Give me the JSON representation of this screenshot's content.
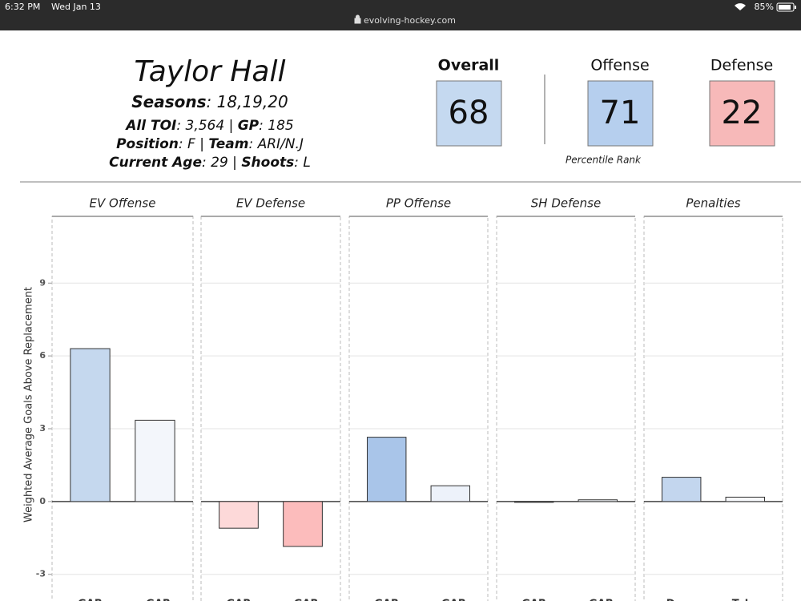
{
  "status": {
    "time": "6:32 PM",
    "date": "Wed Jan 13",
    "url": "evolving-hockey.com",
    "battery": "85%"
  },
  "player": {
    "name": "Taylor Hall",
    "lines": [
      [
        "Seasons",
        ": 18,19,20"
      ],
      [
        "All TOI",
        ": 3,564 | ",
        "GP",
        ": 185"
      ],
      [
        "Position",
        ": F | ",
        "Team",
        ": ARI/N.J"
      ],
      [
        "Current  Age",
        ": 29 | ",
        "Shoots",
        ": L"
      ]
    ]
  },
  "ranks": {
    "items": [
      {
        "label": "Overall",
        "value": 68,
        "color": "#c5d9f0",
        "bold": true
      },
      {
        "label": "Offense",
        "value": 71,
        "color": "#b6cfee"
      },
      {
        "label": "Defense",
        "value": 22,
        "color": "#f7b9b9"
      }
    ],
    "caption": "Percentile Rank"
  },
  "chart_data": {
    "type": "bar",
    "y_label": "Weighted Average Goals Above Replacement",
    "ylim": [
      -4,
      11.75
    ],
    "yticks": [
      -3,
      0,
      3,
      6,
      9
    ],
    "grid": true,
    "facets": [
      {
        "title": "EV Offense",
        "categories": [
          "GAR",
          "xGAR"
        ],
        "values": [
          6.3,
          3.35
        ],
        "colors": [
          "#c5d8ee",
          "#f3f6fb"
        ]
      },
      {
        "title": "EV Defense",
        "categories": [
          "GAR",
          "xGAR"
        ],
        "values": [
          -1.1,
          -1.85
        ],
        "colors": [
          "#fdd9d9",
          "#fcbcbc"
        ]
      },
      {
        "title": "PP Offense",
        "categories": [
          "GAR",
          "xGAR"
        ],
        "values": [
          2.65,
          0.65
        ],
        "colors": [
          "#a9c5e9",
          "#edf2fa"
        ]
      },
      {
        "title": "SH Defense",
        "categories": [
          "GAR",
          "xGAR"
        ],
        "values": [
          -0.02,
          0.07
        ],
        "colors": [
          "#f8fafd",
          "#f5f8fc"
        ]
      },
      {
        "title": "Penalties",
        "categories": [
          "Draw",
          "Take"
        ],
        "values": [
          1.0,
          0.18
        ],
        "colors": [
          "#c3d6ee",
          "#f7f9fc"
        ]
      }
    ]
  }
}
